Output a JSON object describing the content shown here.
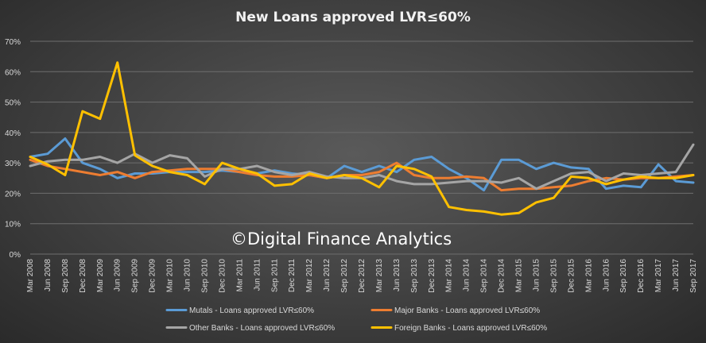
{
  "chart_data": {
    "type": "line",
    "title": "New Loans approved LVR≤60%",
    "watermark": "©Digital Finance Analytics",
    "ylim": [
      0,
      70
    ],
    "y_ticks": [
      "0%",
      "10%",
      "20%",
      "30%",
      "40%",
      "50%",
      "60%",
      "70%"
    ],
    "y_tick_values": [
      0,
      10,
      20,
      30,
      40,
      50,
      60,
      70
    ],
    "grid": true,
    "legend_position": "bottom",
    "categories": [
      "Mar 2008",
      "Jun 2008",
      "Sep 2008",
      "Dec 2008",
      "Mar 2009",
      "Jun 2009",
      "Sep 2009",
      "Dec 2009",
      "Mar 2010",
      "Jun 2010",
      "Sep 2010",
      "Dec 2010",
      "Mar 2011",
      "Jun 2011",
      "Sep 2011",
      "Dec 2011",
      "Mar 2012",
      "Jun 2012",
      "Sep 2012",
      "Dec 2012",
      "Mar 2013",
      "Jun 2013",
      "Sep 2013",
      "Dec 2013",
      "Mar 2014",
      "Jun 2014",
      "Sep 2014",
      "Dec 2014",
      "Mar 2015",
      "Jun 2015",
      "Sep 2015",
      "Dec 2015",
      "Mar 2016",
      "Jun 2016",
      "Sep 2016",
      "Dec 2016",
      "Mar 2017",
      "Jun 2017",
      "Sep 2017"
    ],
    "series": [
      {
        "name": "Mutals - Loans approved LVR≤60%",
        "color": "#5b9bd5",
        "values": [
          32,
          33,
          38,
          30,
          28,
          25,
          26.5,
          26.5,
          27,
          27,
          27,
          27.5,
          27,
          26.5,
          27.5,
          26.5,
          26,
          25,
          29,
          27,
          29,
          27,
          31,
          32,
          28,
          25,
          21,
          31,
          31,
          28,
          30,
          28.5,
          28,
          21.5,
          22.5,
          22,
          29.5,
          24,
          23.5
        ]
      },
      {
        "name": "Major Banks - Loans approved LVR≤60%",
        "color": "#ed7d31",
        "values": [
          31,
          29,
          28,
          27,
          26,
          27,
          25,
          27,
          27.5,
          28,
          28,
          28,
          27,
          26,
          25.5,
          25.5,
          26,
          25,
          26,
          26,
          27,
          30,
          26,
          25,
          25,
          25.5,
          25,
          21,
          21.5,
          21.5,
          22,
          22.5,
          24,
          25,
          24.5,
          25,
          25,
          25.5,
          26
        ]
      },
      {
        "name": "Other Banks - Loans approved LVR≤60%",
        "color": "#a5a5a5",
        "values": [
          29,
          30.5,
          31,
          31,
          32,
          30,
          33,
          30,
          32.5,
          31.5,
          25.5,
          28,
          28,
          29,
          27,
          26,
          27,
          25.5,
          25,
          25,
          26,
          24,
          23,
          23,
          23.5,
          24,
          24,
          23.5,
          25,
          21.5,
          24,
          26.5,
          27,
          24,
          26.5,
          26,
          26.5,
          27,
          36
        ]
      },
      {
        "name": "Foreign Banks - Loans approved LVR≤60%",
        "color": "#ffc000",
        "values": [
          32,
          29.5,
          26,
          47,
          44.5,
          63,
          32.5,
          29,
          27,
          26,
          23,
          30,
          28,
          26.5,
          22.5,
          23,
          26.5,
          25,
          26,
          25,
          22,
          29,
          28,
          25.5,
          15.5,
          14.5,
          14,
          13,
          13.5,
          17,
          18.5,
          25.5,
          25,
          23,
          24.5,
          25.5,
          25,
          25,
          26
        ]
      }
    ]
  }
}
